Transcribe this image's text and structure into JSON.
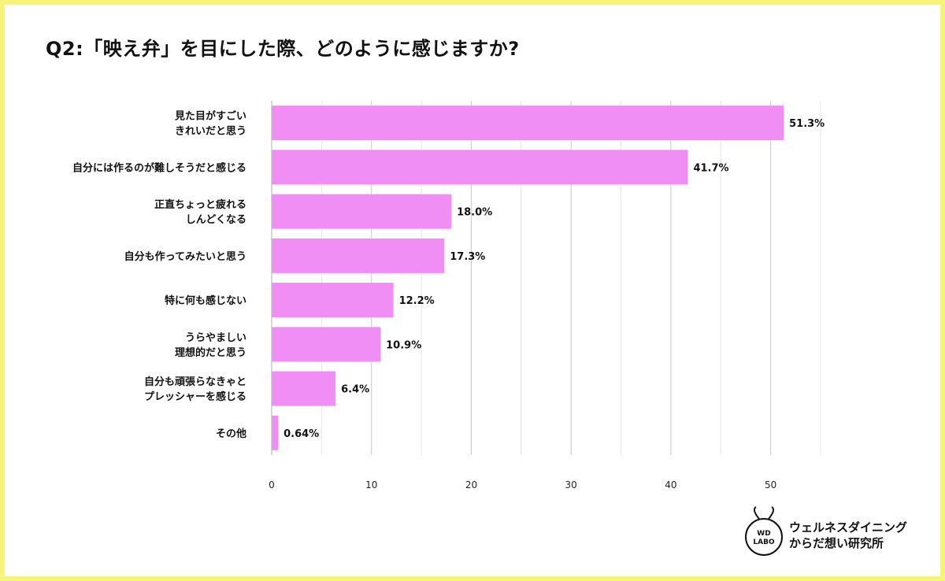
{
  "chart_data": {
    "type": "bar",
    "orientation": "horizontal",
    "title": "Q2:「映え弁」を目にした際、どのように感じますか?",
    "categories": [
      [
        "見た目がすごい",
        "きれいだと思う"
      ],
      [
        "自分には作るのが難しそうだと感じる"
      ],
      [
        "正直ちょっと疲れる",
        "しんどくなる"
      ],
      [
        "自分も作ってみたいと思う"
      ],
      [
        "特に何も感じない"
      ],
      [
        "うらやましい",
        "理想的だと思う"
      ],
      [
        "自分も頑張らなきゃと",
        "プレッシャーを感じる"
      ],
      [
        "その他"
      ]
    ],
    "values": [
      51.3,
      41.7,
      18.0,
      17.3,
      12.2,
      10.9,
      6.4,
      0.64
    ],
    "value_labels": [
      "51.3%",
      "41.7%",
      "18.0%",
      "17.3%",
      "12.2%",
      "10.9%",
      "6.4%",
      "0.64%"
    ],
    "xlim": [
      0,
      55
    ],
    "ticks": [
      0,
      10,
      20,
      30,
      40,
      50
    ],
    "tick_labels": [
      "0",
      "10",
      "20",
      "30",
      "40",
      "50"
    ],
    "grid": true,
    "bar_color": "#f18ef6",
    "background_color": "#f6f57a"
  },
  "logo": {
    "badge_line1": "WD",
    "badge_line2": "LABO",
    "name_line1": "ウェルネスダイニング",
    "name_line2": "からだ想い研究所"
  }
}
